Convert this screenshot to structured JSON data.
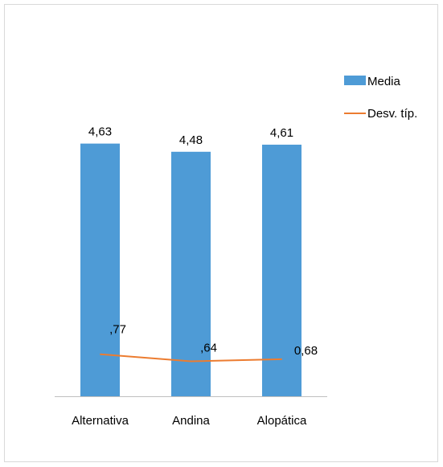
{
  "chart_data": {
    "type": "bar",
    "categories": [
      "Alternativa",
      "Andina",
      "Alopática"
    ],
    "series": [
      {
        "name": "Media",
        "kind": "bar",
        "values": [
          4.63,
          4.48,
          4.61
        ],
        "labels": [
          "4,63",
          "4,48",
          "4,61"
        ],
        "color": "#4e9bd6"
      },
      {
        "name": "Desv. típ.",
        "kind": "line",
        "values": [
          0.77,
          0.64,
          0.68
        ],
        "labels": [
          ",77",
          ",64",
          "0,68"
        ],
        "color": "#ec7c30"
      }
    ],
    "ylim": [
      0,
      5
    ],
    "grid": false,
    "legend": "top-right"
  }
}
